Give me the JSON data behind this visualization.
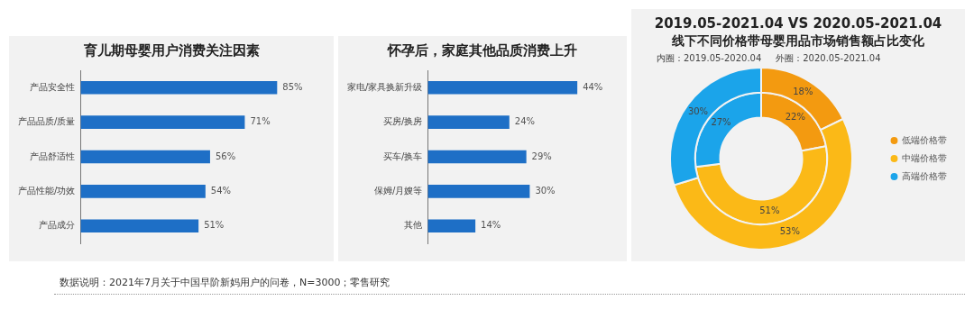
{
  "chart_data": [
    {
      "type": "bar",
      "orientation": "horizontal",
      "title": "育儿期母婴用户消费关注因素",
      "categories": [
        "产品安全性",
        "产品品质/质量",
        "产品舒适性",
        "产品性能/功效",
        "产品成分"
      ],
      "values": [
        85,
        71,
        56,
        54,
        51
      ],
      "value_labels": [
        "85%",
        "71%",
        "56%",
        "54%",
        "51%"
      ],
      "color": "#1e6fc6",
      "legend": false,
      "tick_labels": "y",
      "annotations": [
        "数据说明：2021年7月关于中国早阶新妈用户的问卷，N=3000；零售研究"
      ]
    },
    {
      "type": "bar",
      "orientation": "horizontal",
      "title": "怀孕后，家庭其他品质消费上升",
      "categories": [
        "家电/家具换新升级",
        "买房/换房",
        "买车/换车",
        "保姆/月嫂等",
        "其他"
      ],
      "values": [
        44,
        24,
        29,
        30,
        14
      ],
      "value_labels": [
        "44%",
        "24%",
        "29%",
        "30%",
        "14%"
      ],
      "color": "#1e6fc6",
      "legend": false,
      "tick_labels": "y"
    },
    {
      "type": "donut",
      "title": "2019.05-2021.04 VS 2020.05-2021.04",
      "subtitle": "线下不同价格带母婴用品市场销售额占比变化",
      "annotations": [
        "内圈：2019.05-2020.04",
        "外圈：2020.05-2021.04"
      ],
      "categories": [
        "低端价格带",
        "中端价格带",
        "高端价格带"
      ],
      "colors": [
        "#f39a10",
        "#fbb917",
        "#1ba4ea"
      ],
      "series": [
        {
          "values": [
            22,
            51,
            27
          ],
          "value_labels": [
            "22%",
            "51%",
            "27%"
          ]
        },
        {
          "values": [
            18,
            53,
            30
          ],
          "value_labels": [
            "18%",
            "53%",
            "30%"
          ]
        }
      ],
      "legend": "right"
    }
  ]
}
